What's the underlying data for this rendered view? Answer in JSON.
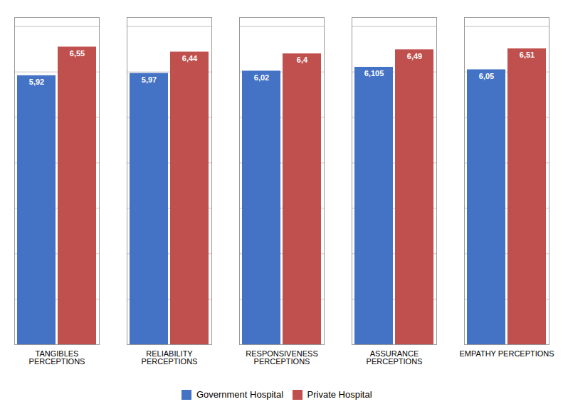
{
  "chart_data": {
    "type": "bar",
    "categories": [
      "TANGIBLES\nPERCEPTIONS",
      "RELIABILITY\nPERCEPTIONS",
      "RESPONSIVENESS\nPERCEPTIONS",
      "ASSURANCE\nPERCEPTIONS",
      "EMPATHY PERCEPTIONS"
    ],
    "series": [
      {
        "name": "Government Hospital",
        "color": "#4472C4",
        "values": [
          5.92,
          5.97,
          6.02,
          6.105,
          6.05
        ],
        "value_labels": [
          "5,92",
          "5,97",
          "6,02",
          "6,105",
          "6,05"
        ]
      },
      {
        "name": "Private Hospital",
        "color": "#C0504D",
        "values": [
          6.55,
          6.44,
          6.4,
          6.49,
          6.51
        ],
        "value_labels": [
          "6,55",
          "6,44",
          "6,4",
          "6,49",
          "6,51"
        ]
      }
    ],
    "ylim": [
      0,
      7.2
    ],
    "yticks": [
      0,
      1,
      2,
      3,
      4,
      5,
      6,
      7
    ],
    "grid": true,
    "legend": "bottom",
    "data_labels": true,
    "tick_labels": "x"
  }
}
